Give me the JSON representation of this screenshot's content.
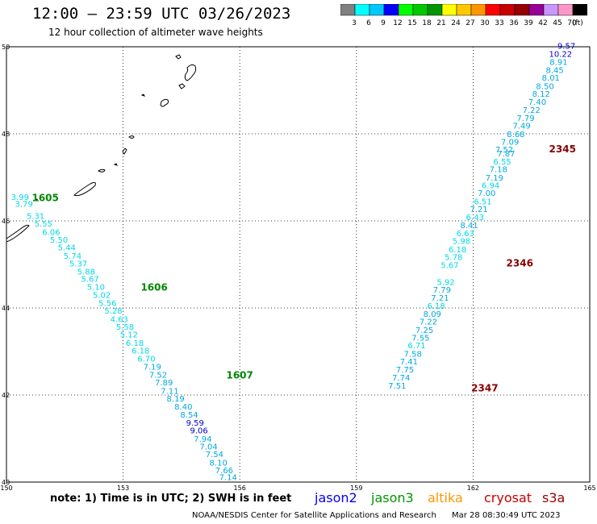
{
  "header": {
    "title": "12:00 — 23:59 UTC 03/26/2023",
    "subtitle": "12 hour collection of altimeter wave heights"
  },
  "legend": {
    "unit": "(ft)",
    "colors": [
      "#808080",
      "#00ffff",
      "#00c8ff",
      "#0000ff",
      "#00ff00",
      "#00c800",
      "#009600",
      "#ffff00",
      "#ffc800",
      "#ff9600",
      "#ff0000",
      "#c80000",
      "#960000",
      "#960096",
      "#c896ff",
      "#ff96c8",
      "#000000"
    ],
    "ticks": [
      "3",
      "6",
      "9",
      "12",
      "15",
      "18",
      "21",
      "24",
      "27",
      "30",
      "33",
      "36",
      "39",
      "42",
      "45",
      "70"
    ]
  },
  "axes": {
    "lon_ticks": [
      "150",
      "153",
      "156",
      "159",
      "162",
      "165"
    ],
    "lat_ticks": [
      "50",
      "48",
      "46",
      "44",
      "42",
      "40"
    ]
  },
  "track_west": [
    {
      "v": "3.99",
      "lon": 150.35,
      "lat": 46.48,
      "c": "#00d8e8"
    },
    {
      "v": "3.79",
      "lon": 150.45,
      "lat": 46.32,
      "c": "#00d8e8"
    },
    {
      "v": "5.31",
      "lon": 150.75,
      "lat": 46.05,
      "c": "#00d8e8"
    },
    {
      "v": "5.55",
      "lon": 150.95,
      "lat": 45.87,
      "c": "#00d8e8"
    },
    {
      "v": "6.06",
      "lon": 151.15,
      "lat": 45.68,
      "c": "#00d8e8"
    },
    {
      "v": "5.50",
      "lon": 151.35,
      "lat": 45.5,
      "c": "#00d8e8"
    },
    {
      "v": "5.44",
      "lon": 151.55,
      "lat": 45.32,
      "c": "#00d8e8"
    },
    {
      "v": "5.74",
      "lon": 151.7,
      "lat": 45.13,
      "c": "#00d8e8"
    },
    {
      "v": "5.37",
      "lon": 151.85,
      "lat": 44.95,
      "c": "#00d8e8"
    },
    {
      "v": "5.88",
      "lon": 152.05,
      "lat": 44.77,
      "c": "#00d8e8"
    },
    {
      "v": "5.67",
      "lon": 152.15,
      "lat": 44.6,
      "c": "#00d8e8"
    },
    {
      "v": "5.10",
      "lon": 152.3,
      "lat": 44.42,
      "c": "#00d8e8"
    },
    {
      "v": "5.02",
      "lon": 152.45,
      "lat": 44.23,
      "c": "#00d8e8"
    },
    {
      "v": "5.56",
      "lon": 152.6,
      "lat": 44.05,
      "c": "#00d8e8"
    },
    {
      "v": "5.28",
      "lon": 152.75,
      "lat": 43.87,
      "c": "#00d8e8"
    },
    {
      "v": "4.63",
      "lon": 152.9,
      "lat": 43.68,
      "c": "#00d8e8"
    },
    {
      "v": "5.58",
      "lon": 153.05,
      "lat": 43.5,
      "c": "#00d8e8"
    },
    {
      "v": "5.12",
      "lon": 153.15,
      "lat": 43.32,
      "c": "#00d8e8"
    },
    {
      "v": "6.18",
      "lon": 153.3,
      "lat": 43.13,
      "c": "#00d8e8"
    },
    {
      "v": "6.18",
      "lon": 153.45,
      "lat": 42.95,
      "c": "#00d8e8"
    },
    {
      "v": "6.70",
      "lon": 153.6,
      "lat": 42.77,
      "c": "#00d8e8"
    },
    {
      "v": "7.19",
      "lon": 153.75,
      "lat": 42.58,
      "c": "#00a8e0"
    },
    {
      "v": "7.52",
      "lon": 153.9,
      "lat": 42.4,
      "c": "#00a8e0"
    },
    {
      "v": "7.89",
      "lon": 154.05,
      "lat": 42.22,
      "c": "#00a8e0"
    },
    {
      "v": "7.11",
      "lon": 154.2,
      "lat": 42.03,
      "c": "#00a8e0"
    },
    {
      "v": "8.19",
      "lon": 154.35,
      "lat": 41.85,
      "c": "#00a8e0"
    },
    {
      "v": "8.40",
      "lon": 154.55,
      "lat": 41.67,
      "c": "#00a8e0"
    },
    {
      "v": "8.54",
      "lon": 154.7,
      "lat": 41.48,
      "c": "#00a8e0"
    },
    {
      "v": "9.59",
      "lon": 154.85,
      "lat": 41.3,
      "c": "#0000c8"
    },
    {
      "v": "9.06",
      "lon": 154.95,
      "lat": 41.12,
      "c": "#0000c8"
    },
    {
      "v": "7.94",
      "lon": 155.05,
      "lat": 40.93,
      "c": "#00a8e0"
    },
    {
      "v": "7.04",
      "lon": 155.2,
      "lat": 40.75,
      "c": "#00a8e0"
    },
    {
      "v": "7.54",
      "lon": 155.35,
      "lat": 40.57,
      "c": "#00a8e0"
    },
    {
      "v": "8.10",
      "lon": 155.45,
      "lat": 40.38,
      "c": "#00a8e0"
    },
    {
      "v": "7.66",
      "lon": 155.6,
      "lat": 40.2,
      "c": "#00a8e0"
    },
    {
      "v": "7.14",
      "lon": 155.7,
      "lat": 40.05,
      "c": "#00a8e0"
    }
  ],
  "track_east": [
    {
      "v": "9.57",
      "lon": 164.4,
      "lat": 49.95,
      "c": "#0000c8"
    },
    {
      "v": "10.22",
      "lon": 164.25,
      "lat": 49.77,
      "c": "#0000c8"
    },
    {
      "v": "8.91",
      "lon": 164.2,
      "lat": 49.58,
      "c": "#00a8e0"
    },
    {
      "v": "8.45",
      "lon": 164.1,
      "lat": 49.4,
      "c": "#00a8e0"
    },
    {
      "v": "8.01",
      "lon": 164.0,
      "lat": 49.22,
      "c": "#00a8e0"
    },
    {
      "v": "8.50",
      "lon": 163.85,
      "lat": 49.03,
      "c": "#00a8e0"
    },
    {
      "v": "8.12",
      "lon": 163.75,
      "lat": 48.85,
      "c": "#00a8e0"
    },
    {
      "v": "7.40",
      "lon": 163.65,
      "lat": 48.67,
      "c": "#00a8e0"
    },
    {
      "v": "7.22",
      "lon": 163.5,
      "lat": 48.48,
      "c": "#00a8e0"
    },
    {
      "v": "7.79",
      "lon": 163.35,
      "lat": 48.3,
      "c": "#00a8e0"
    },
    {
      "v": "7.49",
      "lon": 163.25,
      "lat": 48.12,
      "c": "#00a8e0"
    },
    {
      "v": "8.68",
      "lon": 163.1,
      "lat": 47.93,
      "c": "#00a8e0"
    },
    {
      "v": "7.09",
      "lon": 162.95,
      "lat": 47.75,
      "c": "#00a8e0"
    },
    {
      "v": "7.52",
      "lon": 162.8,
      "lat": 47.57,
      "c": "#00a8e0"
    },
    {
      "v": "7.87",
      "lon": 162.85,
      "lat": 47.48,
      "c": "#00a8e0"
    },
    {
      "v": "6.55",
      "lon": 162.75,
      "lat": 47.3,
      "c": "#00d8e8"
    },
    {
      "v": "7.18",
      "lon": 162.65,
      "lat": 47.12,
      "c": "#00a8e0"
    },
    {
      "v": "7.19",
      "lon": 162.55,
      "lat": 46.93,
      "c": "#00a8e0"
    },
    {
      "v": "6.94",
      "lon": 162.45,
      "lat": 46.75,
      "c": "#00d8e8"
    },
    {
      "v": "7.00",
      "lon": 162.35,
      "lat": 46.57,
      "c": "#00a8e0"
    },
    {
      "v": "6.51",
      "lon": 162.25,
      "lat": 46.38,
      "c": "#00d8e8"
    },
    {
      "v": "7.21",
      "lon": 162.15,
      "lat": 46.2,
      "c": "#00a8e0"
    },
    {
      "v": "6.43",
      "lon": 162.05,
      "lat": 46.02,
      "c": "#00d8e8"
    },
    {
      "v": "8.41",
      "lon": 161.9,
      "lat": 45.83,
      "c": "#00a8e0"
    },
    {
      "v": "6.63",
      "lon": 161.8,
      "lat": 45.65,
      "c": "#00d8e8"
    },
    {
      "v": "5.98",
      "lon": 161.7,
      "lat": 45.47,
      "c": "#00d8e8"
    },
    {
      "v": "6.18",
      "lon": 161.6,
      "lat": 45.28,
      "c": "#00d8e8"
    },
    {
      "v": "5.78",
      "lon": 161.5,
      "lat": 45.1,
      "c": "#00d8e8"
    },
    {
      "v": "5.67",
      "lon": 161.4,
      "lat": 44.92,
      "c": "#00d8e8"
    },
    {
      "v": "5.92",
      "lon": 161.3,
      "lat": 44.53,
      "c": "#00d8e8"
    },
    {
      "v": "7.79",
      "lon": 161.2,
      "lat": 44.35,
      "c": "#00a8e0"
    },
    {
      "v": "7.21",
      "lon": 161.15,
      "lat": 44.17,
      "c": "#00a8e0"
    },
    {
      "v": "6.18",
      "lon": 161.05,
      "lat": 43.98,
      "c": "#00d8e8"
    },
    {
      "v": "8.09",
      "lon": 160.95,
      "lat": 43.8,
      "c": "#00a8e0"
    },
    {
      "v": "7.22",
      "lon": 160.85,
      "lat": 43.62,
      "c": "#00a8e0"
    },
    {
      "v": "7.25",
      "lon": 160.75,
      "lat": 43.43,
      "c": "#00a8e0"
    },
    {
      "v": "7.55",
      "lon": 160.65,
      "lat": 43.25,
      "c": "#00a8e0"
    },
    {
      "v": "6.71",
      "lon": 160.55,
      "lat": 43.07,
      "c": "#00d8e8"
    },
    {
      "v": "7.58",
      "lon": 160.45,
      "lat": 42.88,
      "c": "#00a8e0"
    },
    {
      "v": "7.41",
      "lon": 160.35,
      "lat": 42.7,
      "c": "#00a8e0"
    },
    {
      "v": "7.75",
      "lon": 160.25,
      "lat": 42.52,
      "c": "#00a8e0"
    },
    {
      "v": "7.74",
      "lon": 160.15,
      "lat": 42.33,
      "c": "#00a8e0"
    },
    {
      "v": "7.51",
      "lon": 160.05,
      "lat": 42.15,
      "c": "#00a8e0"
    }
  ],
  "passes": [
    {
      "label": "1605",
      "lon": 151.0,
      "lat": 46.45,
      "c": "#008800"
    },
    {
      "label": "1606",
      "lon": 153.8,
      "lat": 44.4,
      "c": "#008800"
    },
    {
      "label": "1607",
      "lon": 156.0,
      "lat": 42.38,
      "c": "#008800"
    },
    {
      "label": "2345",
      "lon": 164.3,
      "lat": 47.57,
      "c": "#880000"
    },
    {
      "label": "2346",
      "lon": 163.2,
      "lat": 44.95,
      "c": "#880000"
    },
    {
      "label": "2347",
      "lon": 162.3,
      "lat": 42.08,
      "c": "#880000"
    }
  ],
  "footer": {
    "note": "note:  1) Time is in UTC;  2) SWH is in feet",
    "satellites": [
      {
        "name": "jason2",
        "color": "#0000ff"
      },
      {
        "name": "jason3",
        "color": "#009600"
      },
      {
        "name": "altika",
        "color": "#ff9600"
      },
      {
        "name": "cryosat",
        "color": "#c80000"
      },
      {
        "name": "s3a",
        "color": "#960000"
      }
    ],
    "credit": "NOAA/NESDIS Center for Satellite Applications and Research",
    "timestamp": "Mar 28 08:30:49 UTC 2023"
  }
}
